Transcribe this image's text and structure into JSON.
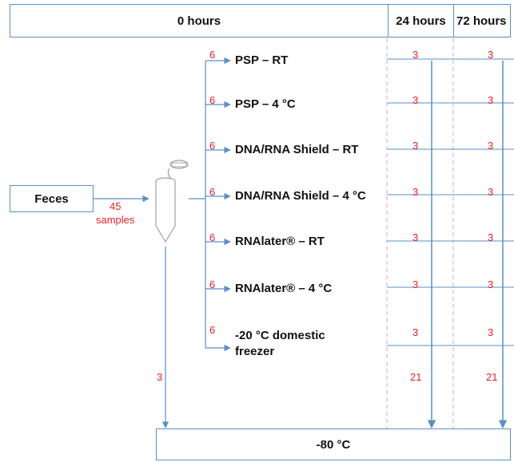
{
  "header": {
    "cells": [
      "0 hours",
      "24 hours",
      "72 hours"
    ]
  },
  "source": {
    "label": "Feces"
  },
  "intake": {
    "count": "45",
    "unit": "samples"
  },
  "direct_count": "3",
  "conditions": [
    {
      "label": "PSP – RT",
      "count": "6",
      "h24": "3",
      "h72": "3"
    },
    {
      "label": "PSP – 4 °C",
      "count": "6",
      "h24": "3",
      "h72": "3"
    },
    {
      "label": "DNA/RNA Shield – RT",
      "count": "6",
      "h24": "3",
      "h72": "3"
    },
    {
      "label": "DNA/RNA Shield – 4 °C",
      "count": "6",
      "h24": "3",
      "h72": "3"
    },
    {
      "label": "RNAlater® – RT",
      "count": "6",
      "h24": "3",
      "h72": "3"
    },
    {
      "label": "RNAlater® – 4 °C",
      "count": "6",
      "h24": "3",
      "h72": "3"
    },
    {
      "label": "-20 °C domestic\nfreezer",
      "count": "6",
      "h24": "3",
      "h72": "3"
    }
  ],
  "totals": {
    "h24": "21",
    "h72": "21"
  },
  "destination": {
    "label": "-80 °C"
  },
  "colors": {
    "line": "#5b8fc7",
    "count": "#e8202a",
    "dashed": "#e6a0a0",
    "text": "#111111"
  }
}
